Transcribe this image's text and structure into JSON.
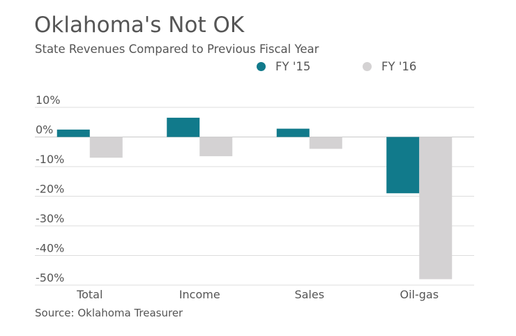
{
  "title": "Oklahoma's Not OK",
  "subtitle": "State Revenues Compared to Previous Fiscal Year",
  "source": "Source: Oklahoma Treasurer",
  "colors": {
    "fy15": "#117a8b",
    "fy16": "#d4d2d3",
    "grid": "#dddddd",
    "text": "#555555"
  },
  "chart_data": {
    "type": "bar",
    "title": "Oklahoma's Not OK",
    "subtitle": "State Revenues Compared to Previous Fiscal Year",
    "categories": [
      "Total",
      "Income",
      "Sales",
      "Oil-gas"
    ],
    "series": [
      {
        "name": "FY '15",
        "values": [
          2.5,
          6.5,
          2.8,
          -19.0
        ]
      },
      {
        "name": "FY '16",
        "values": [
          -7.0,
          -6.5,
          -4.0,
          -48.0
        ]
      }
    ],
    "yticks": [
      10,
      0,
      -10,
      -20,
      -30,
      -40,
      -50
    ],
    "ytick_labels": [
      "10%",
      "0%",
      "-10%",
      "-20%",
      "-30%",
      "-40%",
      "-50%"
    ],
    "ylim": [
      -50,
      10
    ],
    "xlabel": "",
    "ylabel": "",
    "legend": "top-right",
    "grid": true
  }
}
